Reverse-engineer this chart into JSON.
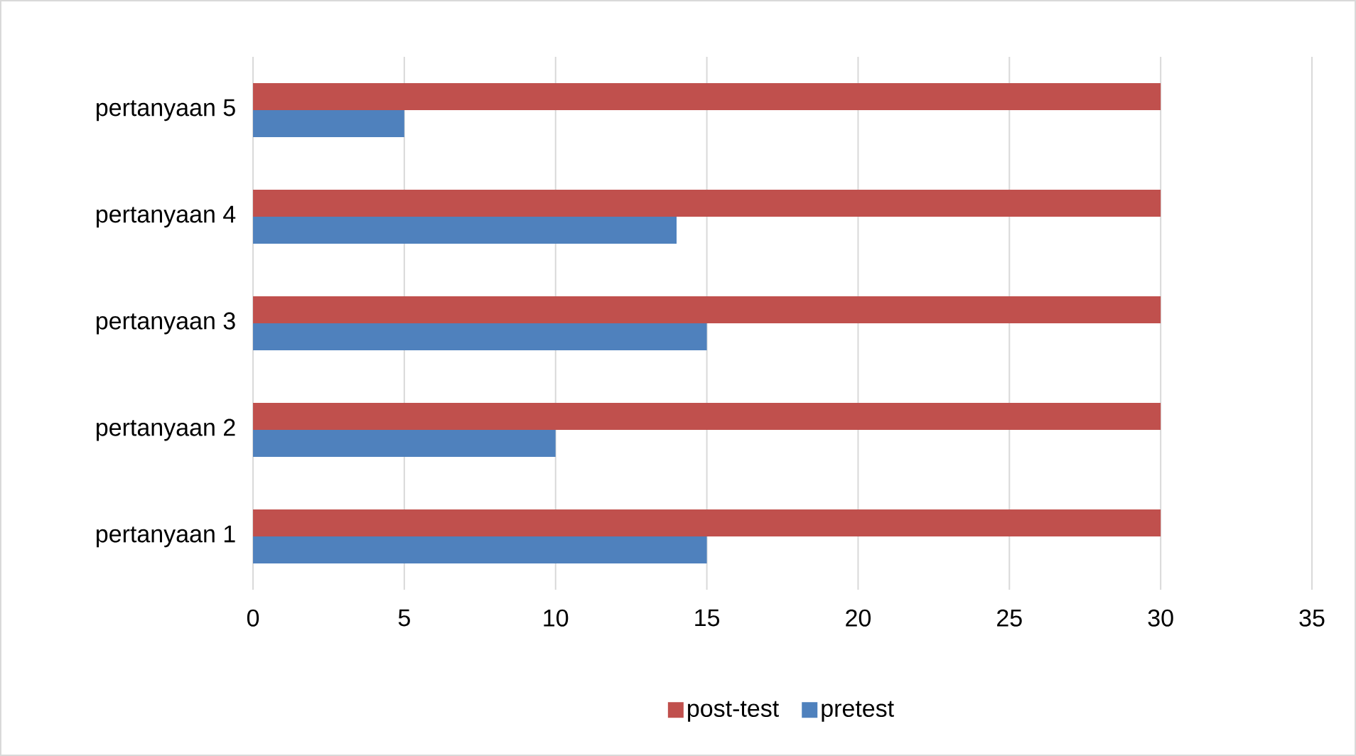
{
  "chart_data": {
    "type": "bar",
    "orientation": "horizontal",
    "categories": [
      "pertanyaan 5",
      "pertanyaan 4",
      "pertanyaan 3",
      "pertanyaan 2",
      "pertanyaan 1"
    ],
    "series": [
      {
        "name": "post-test",
        "color": "#c0504d",
        "values": [
          30,
          30,
          30,
          30,
          30
        ]
      },
      {
        "name": "pretest",
        "color": "#4f81bd",
        "values": [
          5,
          14,
          15,
          10,
          15
        ]
      }
    ],
    "xlim": [
      0,
      35
    ],
    "xticks": [
      0,
      5,
      10,
      15,
      20,
      25,
      30,
      35
    ],
    "grid": "x",
    "legend": "bottom"
  }
}
